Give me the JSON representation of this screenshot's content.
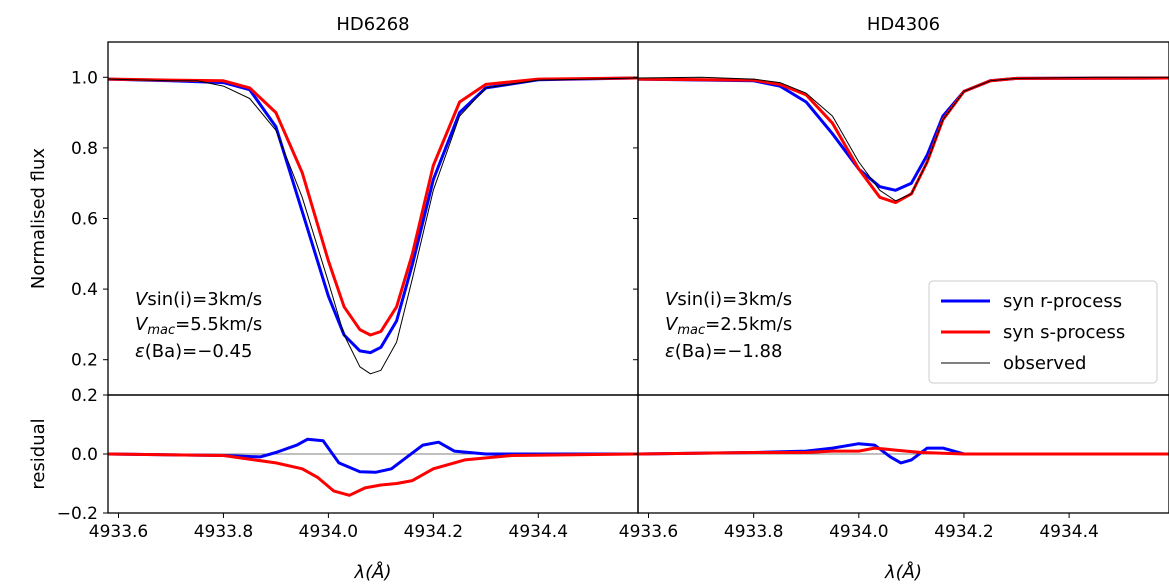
{
  "chart_data": [
    {
      "type": "line",
      "title": "HD6268",
      "ylabel": "Normalised flux",
      "xlim": [
        4933.58,
        4934.59
      ],
      "ylim": [
        0.1,
        1.1
      ],
      "yticks": [
        "0.2",
        "0.4",
        "0.6",
        "0.8",
        "1.0"
      ],
      "annotation": [
        "sin(i)=3km/s",
        "=5.5km/s",
        "(Ba)=−0.45"
      ],
      "ann_sym": [
        "V",
        "V",
        "mac",
        "ε"
      ],
      "series": [
        {
          "name": "syn r-process",
          "color": "#0000ff",
          "x": [
            4933.58,
            4933.7,
            4933.8,
            4933.85,
            4933.9,
            4933.95,
            4934.0,
            4934.03,
            4934.06,
            4934.08,
            4934.1,
            4934.13,
            4934.16,
            4934.2,
            4934.25,
            4934.3,
            4934.4,
            4934.59
          ],
          "y": [
            0.995,
            0.99,
            0.985,
            0.965,
            0.86,
            0.62,
            0.38,
            0.27,
            0.225,
            0.22,
            0.235,
            0.31,
            0.47,
            0.71,
            0.9,
            0.97,
            0.993,
            0.998
          ]
        },
        {
          "name": "syn s-process",
          "color": "#ff0000",
          "x": [
            4933.58,
            4933.7,
            4933.8,
            4933.85,
            4933.9,
            4933.95,
            4934.0,
            4934.03,
            4934.06,
            4934.08,
            4934.1,
            4934.13,
            4934.16,
            4934.2,
            4934.25,
            4934.3,
            4934.4,
            4934.59
          ],
          "y": [
            0.995,
            0.992,
            0.99,
            0.97,
            0.9,
            0.73,
            0.48,
            0.35,
            0.285,
            0.27,
            0.28,
            0.35,
            0.5,
            0.75,
            0.93,
            0.98,
            0.995,
            0.998
          ]
        },
        {
          "name": "observed",
          "color": "#000000",
          "x": [
            4933.58,
            4933.7,
            4933.75,
            4933.8,
            4933.85,
            4933.9,
            4933.95,
            4934.0,
            4934.03,
            4934.06,
            4934.08,
            4934.1,
            4934.13,
            4934.16,
            4934.2,
            4934.25,
            4934.3,
            4934.4,
            4934.5,
            4934.59
          ],
          "y": [
            0.995,
            0.99,
            0.99,
            0.975,
            0.94,
            0.85,
            0.66,
            0.42,
            0.27,
            0.18,
            0.16,
            0.17,
            0.25,
            0.43,
            0.68,
            0.89,
            0.97,
            0.992,
            0.995,
            0.998
          ]
        }
      ]
    },
    {
      "type": "line",
      "title": "HD4306",
      "xlim": [
        4933.58,
        4934.59
      ],
      "ylim": [
        0.1,
        1.1
      ],
      "annotation": [
        "sin(i)=3km/s",
        "=2.5km/s",
        "(Ba)=−1.88"
      ],
      "ann_sym": [
        "V",
        "V",
        "mac",
        "ε"
      ],
      "series": [
        {
          "name": "syn r-process",
          "color": "#0000ff",
          "x": [
            4933.58,
            4933.8,
            4933.85,
            4933.9,
            4933.95,
            4934.0,
            4934.04,
            4934.07,
            4934.1,
            4934.13,
            4934.16,
            4934.2,
            4934.25,
            4934.3,
            4934.59
          ],
          "y": [
            0.995,
            0.99,
            0.975,
            0.93,
            0.84,
            0.74,
            0.69,
            0.68,
            0.7,
            0.78,
            0.89,
            0.96,
            0.99,
            0.997,
            0.998
          ]
        },
        {
          "name": "syn s-process",
          "color": "#ff0000",
          "x": [
            4933.58,
            4933.8,
            4933.85,
            4933.9,
            4933.95,
            4934.0,
            4934.04,
            4934.07,
            4934.1,
            4934.13,
            4934.16,
            4934.2,
            4934.25,
            4934.3,
            4934.59
          ],
          "y": [
            0.995,
            0.992,
            0.98,
            0.95,
            0.87,
            0.74,
            0.66,
            0.645,
            0.67,
            0.76,
            0.88,
            0.96,
            0.99,
            0.997,
            0.998
          ]
        },
        {
          "name": "observed",
          "color": "#000000",
          "x": [
            4933.58,
            4933.7,
            4933.8,
            4933.85,
            4933.9,
            4933.95,
            4934.0,
            4934.04,
            4934.07,
            4934.1,
            4934.13,
            4934.16,
            4934.2,
            4934.25,
            4934.3,
            4934.45,
            4934.59
          ],
          "y": [
            0.998,
            1.0,
            0.995,
            0.985,
            0.955,
            0.89,
            0.76,
            0.68,
            0.65,
            0.67,
            0.76,
            0.88,
            0.96,
            0.99,
            0.997,
            1.0,
            1.0
          ]
        }
      ],
      "legend": {
        "position": "lower right",
        "entries": [
          "syn r-process",
          "syn s-process",
          "observed"
        ]
      }
    },
    {
      "type": "line",
      "ylabel": "residual",
      "xlabel": "λ(Å)",
      "xlim": [
        4933.58,
        4934.59
      ],
      "ylim": [
        -0.2,
        0.2
      ],
      "yticks": [
        "−0.2",
        "0.0",
        "0.2"
      ],
      "xticks": [
        "4933.6",
        "4933.8",
        "4934.0",
        "4934.2",
        "4934.4"
      ],
      "series": [
        {
          "name": "syn r-process",
          "color": "#0000ff",
          "x": [
            4933.58,
            4933.8,
            4933.87,
            4933.9,
            4933.94,
            4933.96,
            4933.99,
            4934.02,
            4934.06,
            4934.09,
            4934.12,
            4934.15,
            4934.18,
            4934.21,
            4934.24,
            4934.3,
            4934.59
          ],
          "y": [
            0.0,
            -0.005,
            -0.01,
            0.005,
            0.03,
            0.05,
            0.045,
            -0.03,
            -0.06,
            -0.062,
            -0.05,
            -0.01,
            0.03,
            0.04,
            0.01,
            0.0,
            0.0
          ]
        },
        {
          "name": "syn s-process",
          "color": "#ff0000",
          "x": [
            4933.58,
            4933.8,
            4933.9,
            4933.95,
            4933.98,
            4934.01,
            4934.04,
            4934.07,
            4934.1,
            4934.13,
            4934.16,
            4934.2,
            4934.26,
            4934.35,
            4934.59
          ],
          "y": [
            0.0,
            -0.005,
            -0.03,
            -0.05,
            -0.08,
            -0.125,
            -0.14,
            -0.115,
            -0.105,
            -0.1,
            -0.09,
            -0.05,
            -0.02,
            -0.005,
            0.0
          ]
        }
      ]
    },
    {
      "type": "line",
      "xlabel": "λ(Å)",
      "xlim": [
        4933.58,
        4934.59
      ],
      "ylim": [
        -0.2,
        0.2
      ],
      "xticks": [
        "4933.6",
        "4933.8",
        "4934.0",
        "4934.2",
        "4934.4"
      ],
      "series": [
        {
          "name": "syn r-process",
          "color": "#0000ff",
          "x": [
            4933.58,
            4933.8,
            4933.9,
            4933.95,
            4934.0,
            4934.03,
            4934.06,
            4934.08,
            4934.1,
            4934.13,
            4934.16,
            4934.2,
            4934.3,
            4934.59
          ],
          "y": [
            0.0,
            0.005,
            0.01,
            0.02,
            0.035,
            0.03,
            -0.01,
            -0.03,
            -0.02,
            0.02,
            0.02,
            0.0,
            0.0,
            0.0
          ]
        },
        {
          "name": "syn s-process",
          "color": "#ff0000",
          "x": [
            4933.58,
            4933.8,
            4933.9,
            4933.95,
            4934.0,
            4934.03,
            4934.06,
            4934.09,
            4934.12,
            4934.2,
            4934.3,
            4934.59
          ],
          "y": [
            0.0,
            0.005,
            0.005,
            0.01,
            0.01,
            0.02,
            0.015,
            0.01,
            0.005,
            0.0,
            0.0,
            0.0
          ]
        }
      ]
    }
  ]
}
